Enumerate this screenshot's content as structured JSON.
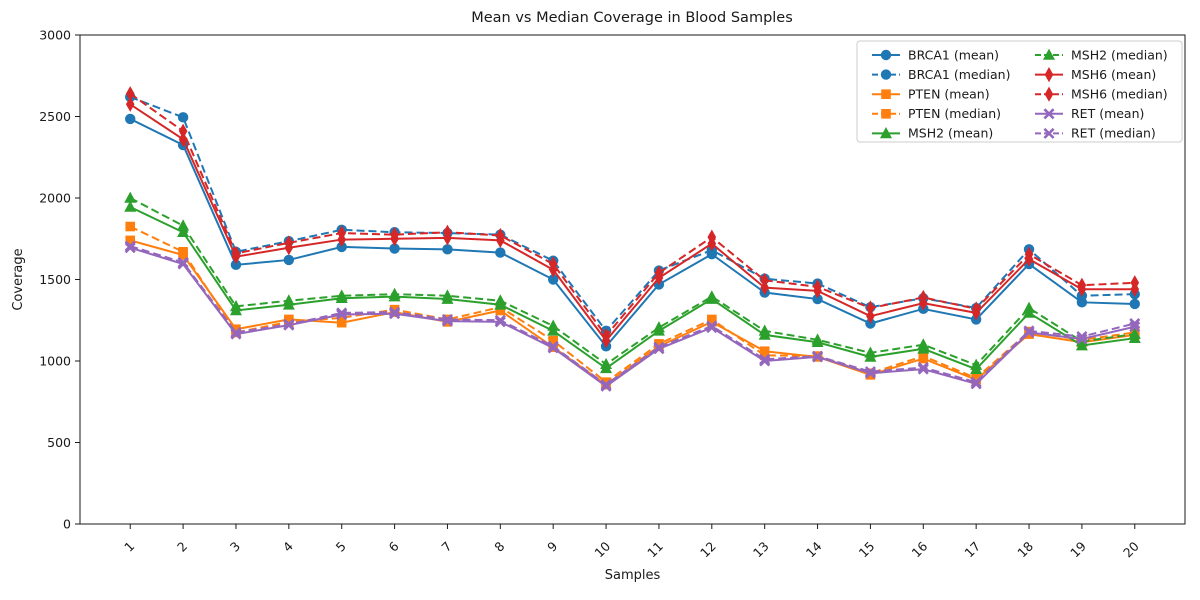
{
  "figure": {
    "title": "Mean vs Median Coverage in Blood Samples",
    "xlabel": "Samples",
    "ylabel": "Coverage"
  },
  "chart_data": {
    "type": "line",
    "title": "Mean vs Median Coverage in Blood Samples",
    "xlabel": "Samples",
    "ylabel": "Coverage",
    "grid": false,
    "legend_position": "upper right, 2 columns",
    "x": [
      1,
      2,
      3,
      4,
      5,
      6,
      7,
      8,
      9,
      10,
      11,
      12,
      13,
      14,
      15,
      16,
      17,
      18,
      19,
      20
    ],
    "xlim": [
      0.05,
      20.95
    ],
    "ylim": [
      0,
      3000
    ],
    "yticks": [
      0,
      500,
      1000,
      1500,
      2000,
      2500,
      3000
    ],
    "series": [
      {
        "name": "BRCA1 (mean)",
        "color": "#1f77b4",
        "marker": "circle",
        "line": "solid",
        "values": [
          2485,
          2325,
          1590,
          1620,
          1700,
          1690,
          1685,
          1665,
          1500,
          1090,
          1470,
          1655,
          1420,
          1380,
          1230,
          1320,
          1255,
          1595,
          1360,
          1350
        ]
      },
      {
        "name": "BRCA1 (median)",
        "color": "#1f77b4",
        "marker": "circle",
        "line": "dashed",
        "values": [
          2620,
          2495,
          1670,
          1735,
          1805,
          1790,
          1785,
          1775,
          1615,
          1185,
          1555,
          1680,
          1505,
          1475,
          1330,
          1385,
          1325,
          1685,
          1400,
          1410
        ]
      },
      {
        "name": "PTEN (mean)",
        "color": "#ff7f0e",
        "marker": "square",
        "line": "solid",
        "values": [
          1740,
          1650,
          1195,
          1255,
          1235,
          1300,
          1240,
          1310,
          1085,
          855,
          1090,
          1240,
          1060,
          1025,
          915,
          1015,
          885,
          1165,
          1115,
          1160
        ]
      },
      {
        "name": "PTEN (median)",
        "color": "#ff7f0e",
        "marker": "square",
        "line": "dashed",
        "values": [
          1825,
          1670,
          1175,
          1240,
          1265,
          1315,
          1255,
          1330,
          1125,
          870,
          1105,
          1255,
          1035,
          1030,
          925,
          1030,
          895,
          1180,
          1130,
          1175
        ]
      },
      {
        "name": "MSH2 (mean)",
        "color": "#2ca02c",
        "marker": "triangle",
        "line": "solid",
        "values": [
          1945,
          1790,
          1310,
          1345,
          1385,
          1395,
          1380,
          1345,
          1185,
          955,
          1185,
          1380,
          1160,
          1115,
          1025,
          1075,
          950,
          1295,
          1095,
          1140
        ]
      },
      {
        "name": "MSH2 (median)",
        "color": "#2ca02c",
        "marker": "triangle",
        "line": "dashed",
        "values": [
          2000,
          1830,
          1335,
          1370,
          1400,
          1410,
          1400,
          1370,
          1215,
          980,
          1205,
          1395,
          1185,
          1130,
          1050,
          1100,
          975,
          1325,
          1120,
          1165
        ]
      },
      {
        "name": "MSH6 (mean)",
        "color": "#d62728",
        "marker": "diamond",
        "line": "solid",
        "values": [
          2575,
          2360,
          1640,
          1695,
          1745,
          1750,
          1755,
          1740,
          1560,
          1125,
          1510,
          1720,
          1450,
          1430,
          1275,
          1355,
          1295,
          1625,
          1440,
          1440
        ]
      },
      {
        "name": "MSH6 (median)",
        "color": "#d62728",
        "marker": "diamond",
        "line": "dashed",
        "values": [
          2640,
          2410,
          1660,
          1725,
          1785,
          1775,
          1790,
          1770,
          1595,
          1155,
          1540,
          1760,
          1495,
          1455,
          1325,
          1390,
          1320,
          1655,
          1465,
          1480
        ]
      },
      {
        "name": "RET (mean)",
        "color": "#9467bd",
        "marker": "x",
        "line": "solid",
        "values": [
          1695,
          1595,
          1165,
          1220,
          1285,
          1290,
          1245,
          1240,
          1080,
          845,
          1075,
          1205,
          1000,
          1025,
          925,
          950,
          860,
          1175,
          1135,
          1210
        ]
      },
      {
        "name": "RET (median)",
        "color": "#9467bd",
        "marker": "x",
        "line": "dashed",
        "values": [
          1705,
          1605,
          1175,
          1225,
          1295,
          1300,
          1255,
          1250,
          1090,
          855,
          1085,
          1215,
          1010,
          1030,
          935,
          960,
          870,
          1185,
          1150,
          1230
        ]
      }
    ]
  }
}
